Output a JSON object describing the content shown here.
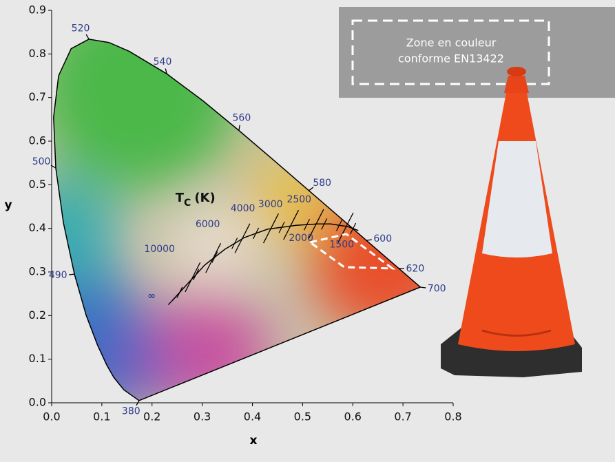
{
  "chart_data": {
    "type": "chromaticity",
    "xlabel": "x",
    "ylabel": "y",
    "xlim": [
      0,
      0.8
    ],
    "ylim": [
      0,
      0.9
    ],
    "xticks": [
      {
        "value": 0,
        "label": "0.0"
      },
      0.1,
      0.2,
      0.3,
      0.4,
      0.5,
      0.6,
      0.7,
      0.8
    ],
    "yticks": [
      {
        "value": 0,
        "label": "0.0"
      },
      0.1,
      0.2,
      0.3,
      0.4,
      0.5,
      0.6,
      0.7,
      0.8,
      0.9
    ],
    "spectral_locus": {
      "x": [
        0.1741,
        0.144,
        0.1241,
        0.1096,
        0.0913,
        0.0687,
        0.0454,
        0.0235,
        0.0082,
        0.0039,
        0.0139,
        0.0389,
        0.0743,
        0.1142,
        0.1547,
        0.2296,
        0.3016,
        0.3731,
        0.4441,
        0.5125,
        0.5752,
        0.627,
        0.6915,
        0.7347
      ],
      "y": [
        0.005,
        0.0297,
        0.0578,
        0.0868,
        0.1327,
        0.2007,
        0.295,
        0.4127,
        0.5384,
        0.6548,
        0.7502,
        0.812,
        0.8338,
        0.8262,
        0.8059,
        0.7543,
        0.6923,
        0.6245,
        0.5547,
        0.4866,
        0.4242,
        0.3725,
        0.3083,
        0.2653
      ]
    },
    "wavelength_labels": [
      {
        "text": "380",
        "x": 0.1741,
        "y": 0.005
      },
      {
        "text": "490",
        "x": 0.0454,
        "y": 0.295
      },
      {
        "text": "500",
        "x": 0.0082,
        "y": 0.5384
      },
      {
        "text": "520",
        "x": 0.0743,
        "y": 0.8338
      },
      {
        "text": "540",
        "x": 0.2296,
        "y": 0.7543
      },
      {
        "text": "560",
        "x": 0.3731,
        "y": 0.6245
      },
      {
        "text": "580",
        "x": 0.5125,
        "y": 0.4866
      },
      {
        "text": "600",
        "x": 0.627,
        "y": 0.3725
      },
      {
        "text": "620",
        "x": 0.6915,
        "y": 0.3083
      },
      {
        "text": "700",
        "x": 0.7347,
        "y": 0.2653
      }
    ],
    "planckian_locus": {
      "x": [
        0.24,
        0.27,
        0.305,
        0.345,
        0.384,
        0.43,
        0.487,
        0.53,
        0.556,
        0.59,
        0.611
      ],
      "y": [
        0.234,
        0.272,
        0.316,
        0.352,
        0.379,
        0.398,
        0.407,
        0.41,
        0.41,
        0.404,
        0.395
      ]
    },
    "tc_label": {
      "main": "T",
      "sub": "C",
      "unit": "(K)"
    },
    "isotherms": [
      {
        "label": "∞",
        "x": 0.24,
        "y": 0.234,
        "lx": 0.199,
        "ly": 0.245
      },
      {
        "label": "10000",
        "x": 0.281,
        "y": 0.288,
        "lx": 0.215,
        "ly": 0.352
      },
      {
        "label": "6000",
        "x": 0.322,
        "y": 0.332,
        "lx": 0.311,
        "ly": 0.409
      },
      {
        "label": "4000",
        "x": 0.38,
        "y": 0.377,
        "lx": 0.381,
        "ly": 0.445
      },
      {
        "label": "3000",
        "x": 0.437,
        "y": 0.4,
        "lx": 0.436,
        "ly": 0.455
      },
      {
        "label": "2500",
        "x": 0.477,
        "y": 0.408,
        "lx": 0.493,
        "ly": 0.466
      },
      {
        "label": "2000",
        "x": 0.527,
        "y": 0.41,
        "lx": 0.497,
        "ly": 0.377
      },
      {
        "label": "1500",
        "x": 0.586,
        "y": 0.402,
        "lx": 0.578,
        "ly": 0.362
      }
    ],
    "zone": {
      "x": [
        0.515,
        0.587,
        0.679,
        0.583
      ],
      "y": [
        0.368,
        0.387,
        0.308,
        0.311
      ]
    },
    "zone_caption": [
      "Zone en couleur",
      "conforme EN13422"
    ]
  }
}
